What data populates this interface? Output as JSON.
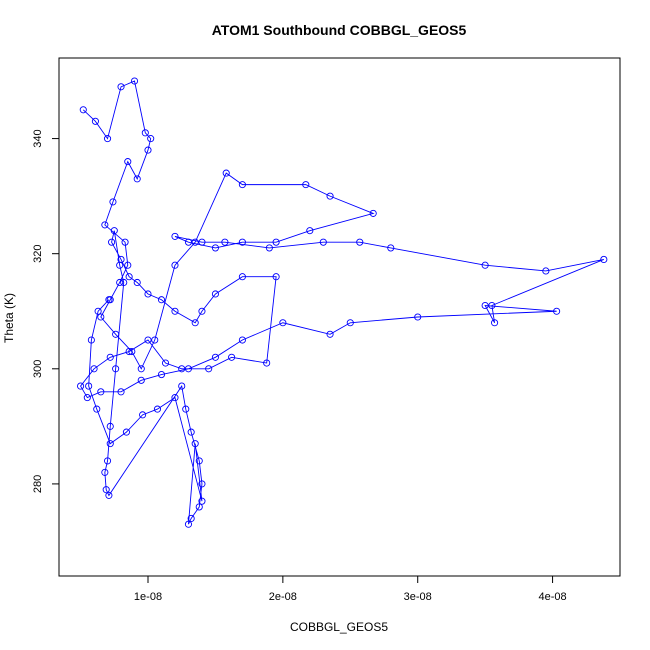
{
  "chart_data": {
    "type": "scatter",
    "title": "ATOM1 Southbound COBBGL_GEOS5",
    "xlabel": "COBBGL_GEOS5",
    "ylabel": "Theta (K)",
    "xlim": [
      3.4e-09,
      4.5e-08
    ],
    "ylim": [
      264,
      354
    ],
    "x_ticks": [
      {
        "value": 1e-08,
        "label": "1e-08"
      },
      {
        "value": 2e-08,
        "label": "2e-08"
      },
      {
        "value": 3e-08,
        "label": "3e-08"
      },
      {
        "value": 4e-08,
        "label": "4e-08"
      }
    ],
    "y_ticks": [
      {
        "value": 280,
        "label": "280"
      },
      {
        "value": 300,
        "label": "300"
      },
      {
        "value": 320,
        "label": "320"
      },
      {
        "value": 340,
        "label": "340"
      }
    ],
    "grid": false,
    "legend": "none",
    "series_color": "#0000ff",
    "marker": "open-circle",
    "connect_points": true,
    "series": [
      {
        "x": [
          5.2e-09,
          6.1e-09,
          7e-09,
          8e-09,
          9e-09,
          9.8e-09,
          1.02e-08,
          1e-08,
          9.2e-09,
          8.5e-09,
          7.4e-09,
          6.8e-09,
          8.3e-09,
          8.5e-09,
          7.9e-09,
          7.2e-09,
          6.5e-09,
          7.6e-09,
          8.8e-09,
          9.5e-09,
          1.05e-08,
          1.2e-08,
          1.35e-08,
          1.58e-08,
          1.7e-08,
          2.17e-08,
          2.35e-08,
          2.67e-08,
          2.2e-08,
          1.95e-08,
          1.7e-08,
          1.5e-08,
          1.3e-08,
          1.2e-08,
          1.4e-08,
          1.57e-08,
          1.9e-08,
          2.3e-08,
          2.57e-08,
          2.8e-08,
          3.5e-08,
          3.95e-08,
          4.38e-08,
          3.55e-08,
          3.57e-08,
          3.5e-08,
          4.03e-08,
          3e-08,
          2.5e-08,
          2.35e-08,
          2e-08,
          1.7e-08,
          1.5e-08,
          1.3e-08,
          1.1e-08,
          9.5e-09,
          8e-09,
          6.5e-09,
          5.5e-09,
          5e-09,
          6e-09,
          7.2e-09,
          8.6e-09,
          1e-08,
          1.13e-08,
          1.25e-08,
          1.45e-08,
          1.62e-08,
          1.88e-08,
          1.95e-08,
          1.7e-08,
          1.5e-08,
          1.4e-08,
          1.35e-08,
          1.2e-08,
          1.1e-08,
          1e-08,
          9.2e-09,
          8.6e-09,
          8e-09,
          7.3e-09,
          7.5e-09,
          7.9e-09,
          8.2e-09,
          7.6e-09,
          7.2e-09,
          7e-09,
          6.8e-09,
          6.9e-09,
          7.1e-09,
          1.25e-08,
          1.28e-08,
          1.32e-08,
          1.38e-08,
          1.4e-08,
          1.38e-08,
          1.32e-08,
          1.3e-08,
          1.35e-08,
          1.4e-08,
          1.2e-08,
          1.07e-08,
          9.6e-09,
          8.4e-09,
          7.2e-09,
          6.2e-09,
          5.6e-09,
          5.8e-09,
          6.3e-09,
          7.1e-09
        ],
        "y": [
          345,
          343,
          340,
          349,
          350,
          341,
          340,
          338,
          333,
          336,
          329,
          325,
          322,
          318,
          315,
          312,
          309,
          306,
          303,
          300,
          305,
          318,
          322,
          334,
          332,
          332,
          330,
          327,
          324,
          322,
          322,
          321,
          322,
          323,
          322,
          322,
          321,
          322,
          322,
          321,
          318,
          317,
          319,
          311,
          308,
          311,
          310,
          309,
          308,
          306,
          308,
          305,
          302,
          300,
          299,
          298,
          296,
          296,
          295,
          297,
          300,
          302,
          303,
          305,
          301,
          300,
          300,
          302,
          301,
          316,
          316,
          313,
          310,
          308,
          310,
          312,
          313,
          315,
          316,
          319,
          322,
          324,
          318,
          315,
          300,
          290,
          284,
          282,
          279,
          278,
          297,
          293,
          289,
          284,
          280,
          276,
          274,
          273,
          287,
          277,
          295,
          293,
          292,
          289,
          287,
          293,
          297,
          305,
          310,
          312
        ]
      }
    ]
  }
}
